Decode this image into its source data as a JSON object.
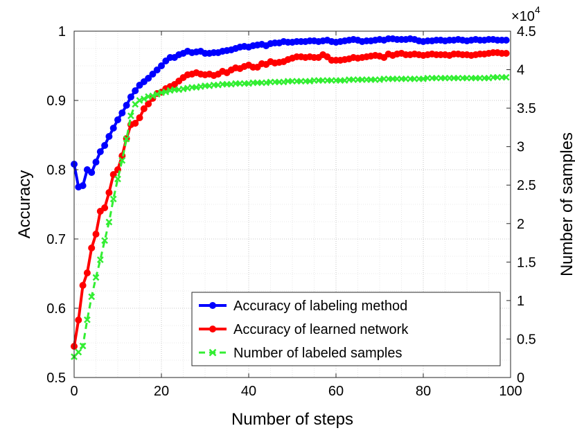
{
  "chart_data": {
    "type": "line",
    "title": "",
    "xlabel": "Number of steps",
    "ylabel": "Accuracy",
    "ylabel_right": "Number of samples",
    "right_axis_multiplier": "×10",
    "right_axis_exponent": "4",
    "xlim": [
      0,
      100
    ],
    "ylim": [
      0.5,
      1.0
    ],
    "ylim_right": [
      0,
      4.5
    ],
    "x_ticks": [
      0,
      20,
      40,
      60,
      80,
      100
    ],
    "x_tick_labels": [
      "0",
      "20",
      "40",
      "60",
      "80",
      "100"
    ],
    "y_ticks": [
      0.5,
      0.6,
      0.7,
      0.8,
      0.9,
      1.0
    ],
    "y_tick_labels": [
      "0.5",
      "0.6",
      "0.7",
      "0.8",
      "0.9",
      "1"
    ],
    "y_right_ticks": [
      0,
      0.5,
      1,
      1.5,
      2,
      2.5,
      3,
      3.5,
      4,
      4.5
    ],
    "y_right_tick_labels": [
      "0",
      "0.5",
      "1",
      "1.5",
      "2",
      "2.5",
      "3",
      "3.5",
      "4",
      "4.5"
    ],
    "grid": true,
    "legend_position": "bottom-right",
    "series": [
      {
        "name": "Accuracy of labeling method",
        "axis": "left",
        "color": "#0000ff",
        "marker": "circle",
        "line_style": "solid",
        "x": [
          0,
          1,
          2,
          3,
          4,
          5,
          6,
          7,
          8,
          9,
          10,
          11,
          12,
          13,
          14,
          15,
          16,
          17,
          18,
          19,
          20,
          21,
          22,
          23,
          24,
          25,
          26,
          27,
          28,
          29,
          30,
          31,
          32,
          33,
          34,
          35,
          36,
          37,
          38,
          39,
          40,
          41,
          42,
          43,
          44,
          45,
          46,
          47,
          48,
          49,
          50,
          51,
          52,
          53,
          54,
          55,
          56,
          57,
          58,
          59,
          60,
          61,
          62,
          63,
          64,
          65,
          66,
          67,
          68,
          69,
          70,
          71,
          72,
          73,
          74,
          75,
          76,
          77,
          78,
          79,
          80,
          81,
          82,
          83,
          84,
          85,
          86,
          87,
          88,
          89,
          90,
          91,
          92,
          93,
          94,
          95,
          96,
          97,
          98,
          99
        ],
        "y": [
          0.808,
          0.775,
          0.777,
          0.8,
          0.796,
          0.811,
          0.826,
          0.835,
          0.848,
          0.86,
          0.872,
          0.882,
          0.893,
          0.905,
          0.914,
          0.922,
          0.927,
          0.932,
          0.938,
          0.944,
          0.95,
          0.957,
          0.962,
          0.962,
          0.966,
          0.968,
          0.971,
          0.969,
          0.97,
          0.971,
          0.968,
          0.968,
          0.969,
          0.969,
          0.971,
          0.972,
          0.973,
          0.975,
          0.977,
          0.978,
          0.977,
          0.979,
          0.98,
          0.981,
          0.979,
          0.982,
          0.983,
          0.983,
          0.985,
          0.984,
          0.984,
          0.985,
          0.985,
          0.985,
          0.986,
          0.986,
          0.985,
          0.986,
          0.987,
          0.985,
          0.984,
          0.985,
          0.986,
          0.987,
          0.988,
          0.987,
          0.985,
          0.986,
          0.986,
          0.987,
          0.988,
          0.987,
          0.989,
          0.989,
          0.988,
          0.988,
          0.988,
          0.989,
          0.988,
          0.986,
          0.985,
          0.986,
          0.986,
          0.987,
          0.987,
          0.986,
          0.987,
          0.987,
          0.988,
          0.987,
          0.986,
          0.987,
          0.988,
          0.987,
          0.987,
          0.988,
          0.988,
          0.987,
          0.987,
          0.987
        ]
      },
      {
        "name": "Accuracy of learned network",
        "axis": "left",
        "color": "#ff0000",
        "marker": "circle",
        "line_style": "solid",
        "x": [
          0,
          1,
          2,
          3,
          4,
          5,
          6,
          7,
          8,
          9,
          10,
          11,
          12,
          13,
          14,
          15,
          16,
          17,
          18,
          19,
          20,
          21,
          22,
          23,
          24,
          25,
          26,
          27,
          28,
          29,
          30,
          31,
          32,
          33,
          34,
          35,
          36,
          37,
          38,
          39,
          40,
          41,
          42,
          43,
          44,
          45,
          46,
          47,
          48,
          49,
          50,
          51,
          52,
          53,
          54,
          55,
          56,
          57,
          58,
          59,
          60,
          61,
          62,
          63,
          64,
          65,
          66,
          67,
          68,
          69,
          70,
          71,
          72,
          73,
          74,
          75,
          76,
          77,
          78,
          79,
          80,
          81,
          82,
          83,
          84,
          85,
          86,
          87,
          88,
          89,
          90,
          91,
          92,
          93,
          94,
          95,
          96,
          97,
          98,
          99
        ],
        "y": [
          0.545,
          0.583,
          0.633,
          0.651,
          0.687,
          0.707,
          0.74,
          0.745,
          0.767,
          0.793,
          0.8,
          0.82,
          0.845,
          0.865,
          0.867,
          0.875,
          0.888,
          0.895,
          0.903,
          0.91,
          0.912,
          0.917,
          0.92,
          0.923,
          0.928,
          0.933,
          0.937,
          0.938,
          0.94,
          0.938,
          0.937,
          0.938,
          0.936,
          0.938,
          0.942,
          0.94,
          0.944,
          0.947,
          0.946,
          0.949,
          0.951,
          0.948,
          0.948,
          0.953,
          0.952,
          0.956,
          0.954,
          0.955,
          0.956,
          0.959,
          0.961,
          0.963,
          0.963,
          0.962,
          0.963,
          0.962,
          0.962,
          0.966,
          0.963,
          0.958,
          0.958,
          0.958,
          0.959,
          0.96,
          0.962,
          0.961,
          0.962,
          0.963,
          0.964,
          0.965,
          0.964,
          0.962,
          0.967,
          0.965,
          0.967,
          0.968,
          0.966,
          0.966,
          0.967,
          0.966,
          0.965,
          0.966,
          0.967,
          0.966,
          0.966,
          0.966,
          0.965,
          0.967,
          0.967,
          0.966,
          0.966,
          0.965,
          0.966,
          0.967,
          0.967,
          0.968,
          0.969,
          0.969,
          0.968,
          0.968
        ]
      },
      {
        "name": "Number of labeled samples",
        "axis": "right",
        "color": "#33ee33",
        "marker": "x",
        "line_style": "dashed",
        "x": [
          0,
          1,
          2,
          3,
          4,
          5,
          6,
          7,
          8,
          9,
          10,
          11,
          12,
          13,
          14,
          15,
          16,
          17,
          18,
          19,
          20,
          21,
          22,
          23,
          24,
          25,
          26,
          27,
          28,
          29,
          30,
          31,
          32,
          33,
          34,
          35,
          36,
          37,
          38,
          39,
          40,
          41,
          42,
          43,
          44,
          45,
          46,
          47,
          48,
          49,
          50,
          51,
          52,
          53,
          54,
          55,
          56,
          57,
          58,
          59,
          60,
          61,
          62,
          63,
          64,
          65,
          66,
          67,
          68,
          69,
          70,
          71,
          72,
          73,
          74,
          75,
          76,
          77,
          78,
          79,
          80,
          81,
          82,
          83,
          84,
          85,
          86,
          87,
          88,
          89,
          90,
          91,
          92,
          93,
          94,
          95,
          96,
          97,
          98,
          99
        ],
        "y": [
          0.27,
          0.33,
          0.41,
          0.75,
          1.05,
          1.3,
          1.53,
          1.78,
          2.02,
          2.32,
          2.58,
          2.82,
          3.1,
          3.4,
          3.55,
          3.6,
          3.62,
          3.65,
          3.66,
          3.68,
          3.7,
          3.71,
          3.73,
          3.74,
          3.74,
          3.75,
          3.76,
          3.77,
          3.77,
          3.78,
          3.79,
          3.79,
          3.8,
          3.8,
          3.81,
          3.81,
          3.81,
          3.82,
          3.82,
          3.82,
          3.82,
          3.83,
          3.83,
          3.83,
          3.83,
          3.84,
          3.84,
          3.84,
          3.84,
          3.85,
          3.85,
          3.85,
          3.85,
          3.85,
          3.85,
          3.86,
          3.86,
          3.86,
          3.86,
          3.86,
          3.86,
          3.86,
          3.86,
          3.87,
          3.87,
          3.87,
          3.87,
          3.87,
          3.87,
          3.87,
          3.87,
          3.88,
          3.88,
          3.88,
          3.88,
          3.88,
          3.88,
          3.88,
          3.88,
          3.88,
          3.88,
          3.89,
          3.89,
          3.89,
          3.89,
          3.89,
          3.89,
          3.89,
          3.89,
          3.89,
          3.89,
          3.89,
          3.89,
          3.89,
          3.89,
          3.89,
          3.9,
          3.9,
          3.9,
          3.9
        ]
      }
    ]
  }
}
